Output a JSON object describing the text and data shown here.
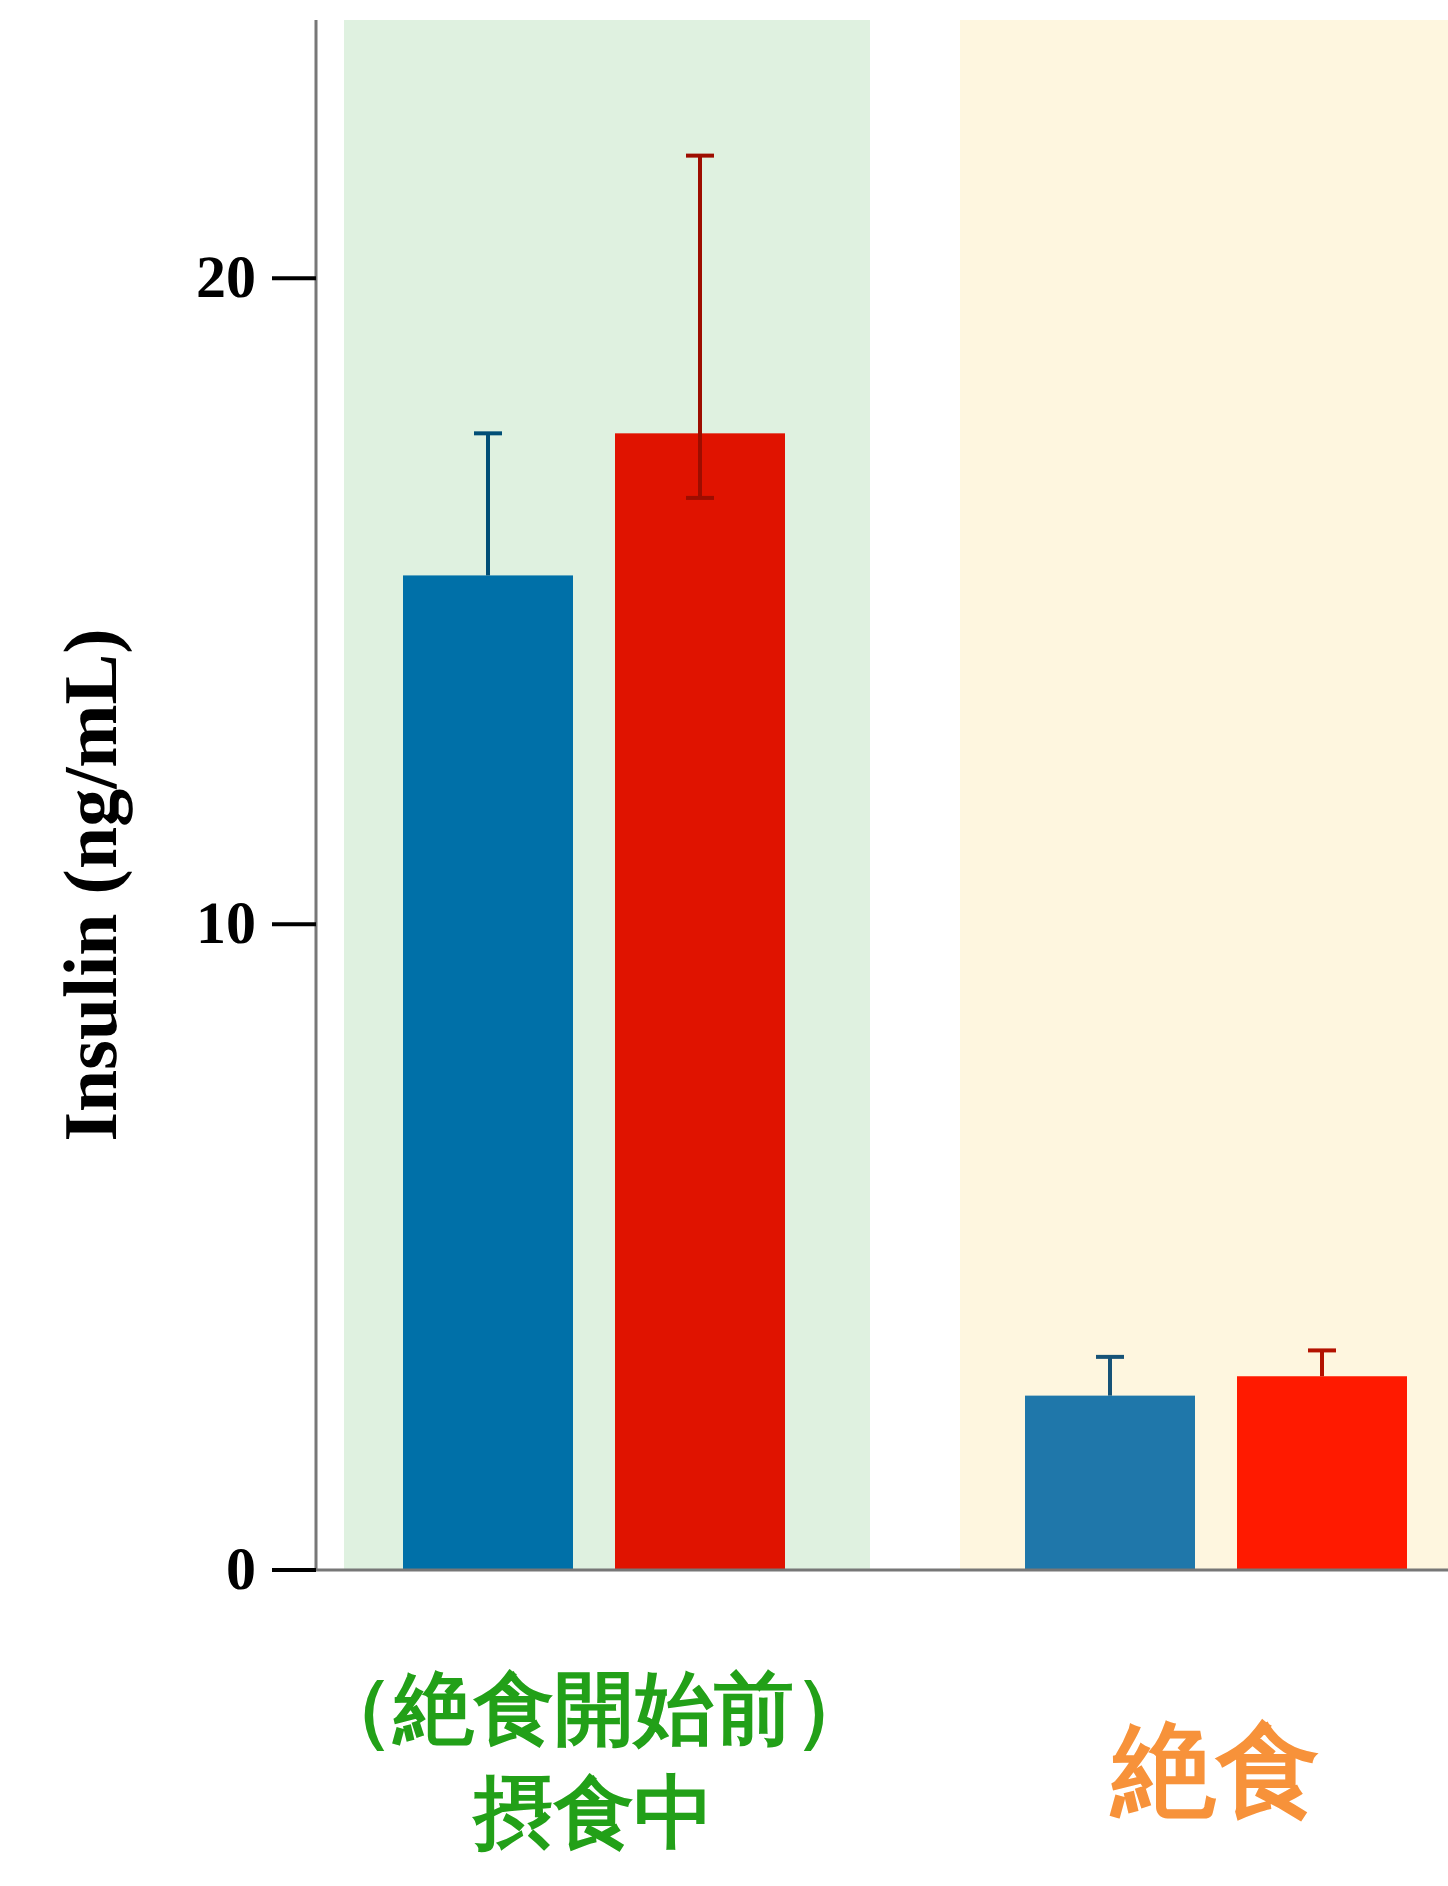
{
  "chart_data": {
    "type": "bar",
    "ylabel": "Insulin (ng/mL)",
    "categories": [
      "（絶食開始前）摂食中",
      "絶食"
    ],
    "series": [
      {
        "colors": [
          "#0070a8",
          "#1f77aa"
        ],
        "values": [
          15.4,
          2.7
        ],
        "errors": [
          [
            15.4,
            17.6
          ],
          [
            2.7,
            3.3
          ]
        ]
      },
      {
        "colors": [
          "#e01300",
          "#ff1a00"
        ],
        "values": [
          17.6,
          3.0
        ],
        "errors": [
          [
            16.6,
            21.9
          ],
          [
            3.0,
            3.4
          ]
        ]
      }
    ],
    "bands": [
      {
        "axis": "x",
        "from": "（絶食開始前）摂食中",
        "to": "（絶食開始前）摂食中",
        "color": "#dff1e0"
      },
      {
        "axis": "x",
        "from": "絶食",
        "to": "絶食",
        "color": "#fef6df"
      }
    ],
    "ylim": [
      0,
      24
    ],
    "yticks": [
      0,
      10,
      20
    ],
    "grid": false
  }
}
